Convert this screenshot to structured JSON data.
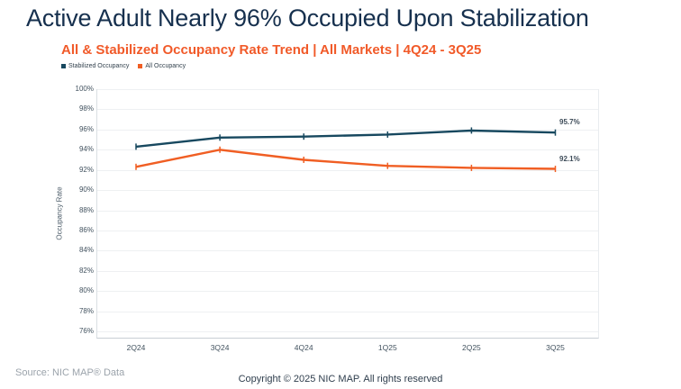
{
  "page": {
    "title": "Active Adult Nearly 96% Occupied Upon Stabilization",
    "subtitle": "All & Stabilized Occupancy Rate Trend | All Markets | 4Q24 - 3Q25",
    "source": "Source: NIC MAP® Data",
    "copyright": "Copyright © 2025 NIC MAP. All rights reserved"
  },
  "colors": {
    "title_navy": "#16304e",
    "subtitle_orange": "#f15a29",
    "stabilized_line": "#17485f",
    "all_line": "#f05e23"
  },
  "chart_data": {
    "type": "line",
    "title": "All & Stabilized Occupancy Rate Trend | All Markets | 4Q24 - 3Q25",
    "xlabel": "",
    "ylabel": "Occupancy Rate",
    "categories": [
      "2Q24",
      "3Q24",
      "4Q24",
      "1Q25",
      "2Q25",
      "3Q25"
    ],
    "series": [
      {
        "name": "Stabilized Occupancy",
        "color": "#17485f",
        "values": [
          94.3,
          95.2,
          95.3,
          95.5,
          95.9,
          95.7
        ],
        "end_label": "95.7%"
      },
      {
        "name": "All Occupancy",
        "color": "#f05e23",
        "values": [
          92.3,
          94.0,
          93.0,
          92.4,
          92.2,
          92.1
        ],
        "end_label": "92.1%"
      }
    ],
    "ylim": [
      76,
      100
    ],
    "ytick_step": 2,
    "ytick_suffix": "%",
    "grid": "horizontal",
    "legend_position": "top-left"
  }
}
